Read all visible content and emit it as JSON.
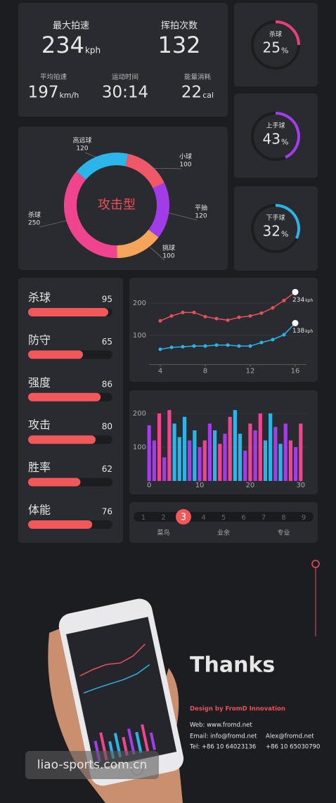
{
  "summary": {
    "primary": [
      {
        "label": "最大拍速",
        "value": 234,
        "unit": "kph"
      },
      {
        "label": "挥拍次数",
        "value": 132
      }
    ],
    "secondary": [
      {
        "label": "平均拍速",
        "value": 197,
        "unit": "km/h"
      },
      {
        "label": "运动时间",
        "value": "30:14"
      },
      {
        "label": "能量消耗",
        "value": 22,
        "unit": "cal"
      }
    ]
  },
  "rings": {
    "ylim": [
      0,
      100
    ],
    "items": [
      {
        "label": "杀球",
        "value": 25,
        "unit": "%",
        "color": "#e8407a"
      },
      {
        "label": "上手球",
        "value": 43,
        "unit": "%",
        "color": "#a33de8"
      },
      {
        "label": "下手球",
        "value": 32,
        "unit": "%",
        "color": "#2bb5e6"
      }
    ]
  },
  "chart_data": [
    {
      "type": "pie",
      "title": "攻击型",
      "categories": [
        "高远球",
        "小球",
        "平抽",
        "挑球",
        "杀球"
      ],
      "values": [
        120,
        100,
        120,
        100,
        250
      ],
      "colors": [
        "#2cb5e8",
        "#f0586a",
        "#a23be8",
        "#f5a55a",
        "#f0458e"
      ]
    },
    {
      "type": "hbar",
      "categories": [
        "杀球",
        "防守",
        "强度",
        "攻击",
        "胜率",
        "体能"
      ],
      "values": [
        95,
        65,
        86,
        80,
        62,
        76
      ],
      "xlim": [
        0,
        100
      ],
      "color": "#f0585a"
    },
    {
      "type": "line",
      "x": [
        4,
        5,
        6,
        7,
        8,
        9,
        10,
        11,
        12,
        13,
        14,
        15,
        16
      ],
      "xlim": [
        3,
        17
      ],
      "xticks": [
        4,
        8,
        12,
        16
      ],
      "ylim": [
        10,
        260
      ],
      "yticks": [
        100,
        200
      ],
      "unit": "kph",
      "series": [
        {
          "color": "#e8505a",
          "values": [
            145,
            160,
            171,
            171,
            158,
            152,
            147,
            156,
            160,
            169,
            185,
            208,
            234
          ]
        },
        {
          "color": "#2bb5e6",
          "values": [
            57,
            63,
            65,
            67,
            67,
            70,
            70,
            67,
            67,
            78,
            87,
            102,
            138
          ]
        }
      ]
    },
    {
      "type": "bar",
      "x": [
        0,
        1,
        2,
        3,
        4,
        5,
        6,
        7,
        8,
        9,
        10,
        11,
        12,
        13,
        14,
        15,
        16,
        17,
        18,
        19,
        20,
        21,
        22,
        23,
        24,
        25,
        26,
        27,
        28,
        29,
        30
      ],
      "values": [
        165,
        120,
        200,
        70,
        210,
        170,
        130,
        190,
        120,
        150,
        100,
        120,
        170,
        150,
        110,
        140,
        190,
        210,
        140,
        90,
        170,
        150,
        200,
        120,
        200,
        160,
        110,
        170,
        120,
        100,
        170
      ],
      "colors": [
        "#a33de8",
        "#a33de8",
        "#f0458e",
        "#a33de8",
        "#f0458e",
        "#2bb5e6",
        "#2bb5e6",
        "#2bb5e6",
        "#a33de8",
        "#2bb5e6",
        "#a33de8",
        "#f0458e",
        "#a33de8",
        "#2bb5e6",
        "#f0458e",
        "#a33de8",
        "#f0458e",
        "#2bb5e6",
        "#2bb5e6",
        "#a33de8",
        "#f0458e",
        "#a33de8",
        "#f0458e",
        "#2bb5e6",
        "#2bb5e6",
        "#a33de8",
        "#2bb5e6",
        "#a33de8",
        "#f0458e",
        "#a33de8",
        "#f0458e"
      ],
      "xlim": [
        -1,
        31
      ],
      "xticks": [
        0,
        10,
        20,
        30
      ],
      "ylim": [
        0,
        230
      ],
      "yticks": [
        100,
        200
      ]
    }
  ],
  "level": {
    "levels": [
      1,
      2,
      3,
      4,
      5,
      6,
      7,
      8,
      9
    ],
    "selected": 3,
    "labels": [
      "菜鸟",
      "业余",
      "专业"
    ]
  },
  "contact": {
    "title": "Thanks",
    "credit": "Design by FromD Innovation",
    "web": "Web: www.fromd.net",
    "email": [
      "Email:  info@fromd.net",
      "Alex@fromd.net"
    ],
    "tel": [
      "Tel: +86 10 64023136",
      "+86 10  65030790"
    ]
  },
  "watermark": "liao-sports.com.cn"
}
